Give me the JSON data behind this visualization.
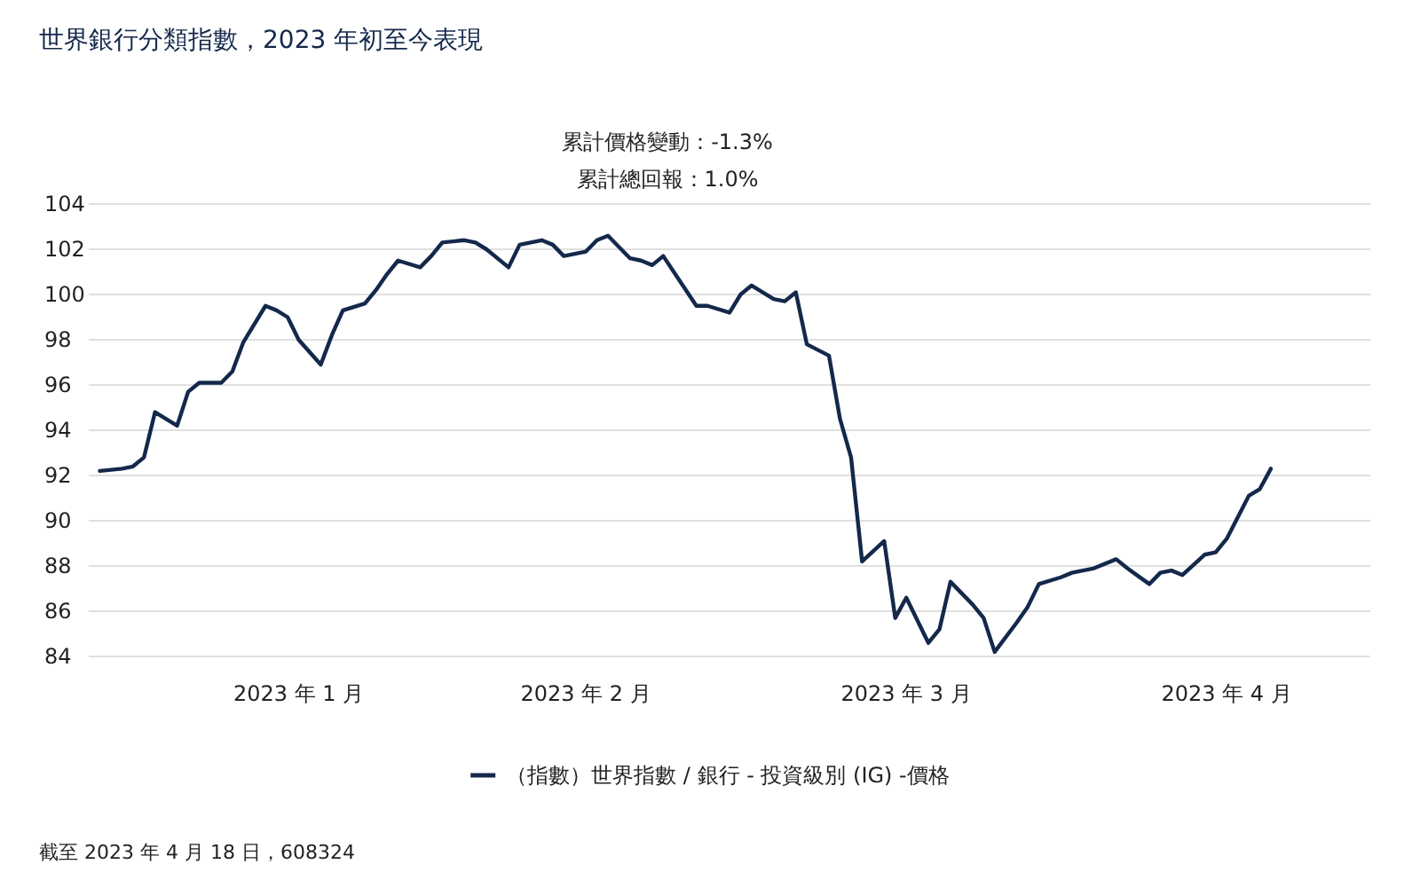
{
  "chart_data": {
    "type": "line",
    "title": "世界銀行分類指數，2023 年初至今表現",
    "annotations": [
      "累計價格變動：-1.3%",
      "累計總回報：1.0%",
      "截至 2023 年 4 月 18 日，608324"
    ],
    "x": [
      "2023-01-02",
      "2023-01-04",
      "2023-01-05",
      "2023-01-06",
      "2023-01-07",
      "2023-01-09",
      "2023-01-10",
      "2023-01-11",
      "2023-01-13",
      "2023-01-14",
      "2023-01-15",
      "2023-01-17",
      "2023-01-18",
      "2023-01-19",
      "2023-01-20",
      "2023-01-22",
      "2023-01-23",
      "2023-01-24",
      "2023-01-26",
      "2023-01-27",
      "2023-01-28",
      "2023-01-29",
      "2023-01-31",
      "2023-02-01",
      "2023-02-02",
      "2023-02-04",
      "2023-02-05",
      "2023-02-06",
      "2023-02-08",
      "2023-02-09",
      "2023-02-11",
      "2023-02-12",
      "2023-02-13",
      "2023-02-15",
      "2023-02-16",
      "2023-02-17",
      "2023-02-19",
      "2023-02-20",
      "2023-02-21",
      "2023-02-22",
      "2023-02-25",
      "2023-02-26",
      "2023-02-28",
      "2023-03-01",
      "2023-03-02",
      "2023-03-04",
      "2023-03-05",
      "2023-03-06",
      "2023-03-07",
      "2023-03-09",
      "2023-03-10",
      "2023-03-11",
      "2023-03-12",
      "2023-03-14",
      "2023-03-15",
      "2023-03-16",
      "2023-03-18",
      "2023-03-19",
      "2023-03-20",
      "2023-03-22",
      "2023-03-23",
      "2023-03-24",
      "2023-03-26",
      "2023-03-27",
      "2023-03-28",
      "2023-03-30",
      "2023-03-31",
      "2023-04-02",
      "2023-04-04",
      "2023-04-05",
      "2023-04-07",
      "2023-04-08",
      "2023-04-09",
      "2023-04-10",
      "2023-04-12",
      "2023-04-13",
      "2023-04-14",
      "2023-04-16",
      "2023-04-17",
      "2023-04-18"
    ],
    "series": [
      {
        "name": "（指數）世界指數 / 銀行 - 投資級別 (IG) -價格",
        "color": "#14284b",
        "values": [
          92.2,
          92.3,
          92.4,
          92.8,
          94.8,
          94.2,
          95.7,
          96.1,
          96.1,
          96.6,
          97.9,
          99.5,
          99.3,
          99.0,
          98.0,
          96.9,
          98.2,
          99.3,
          99.6,
          100.2,
          100.9,
          101.5,
          101.2,
          101.7,
          102.3,
          102.4,
          102.3,
          102.0,
          101.2,
          102.2,
          102.4,
          102.2,
          101.7,
          101.9,
          102.4,
          102.6,
          101.6,
          101.5,
          101.3,
          101.7,
          99.5,
          99.5,
          99.2,
          100.0,
          100.4,
          99.8,
          99.7,
          100.1,
          97.8,
          97.3,
          94.5,
          92.8,
          88.2,
          89.1,
          85.7,
          86.6,
          84.6,
          85.2,
          87.3,
          86.3,
          85.7,
          84.2,
          85.5,
          86.2,
          87.2,
          87.5,
          87.7,
          87.9,
          88.3,
          87.9,
          87.2,
          87.7,
          87.8,
          87.6,
          88.5,
          88.6,
          89.2,
          91.1,
          91.4,
          92.3
        ]
      }
    ],
    "xlim": [
      "2023-01-01",
      "2023-04-27"
    ],
    "xticks": [
      {
        "value": "2023-01-20",
        "label": "2023 年 1 月"
      },
      {
        "value": "2023-02-15",
        "label": "2023 年 2 月"
      },
      {
        "value": "2023-03-16",
        "label": "2023 年 3 月"
      },
      {
        "value": "2023-04-14",
        "label": "2023 年 4 月"
      }
    ],
    "ylim": [
      84,
      104
    ],
    "yticks": [
      84,
      86,
      88,
      90,
      92,
      94,
      96,
      98,
      100,
      102,
      104
    ],
    "grid": "y",
    "legend": "bottom",
    "marker": "none",
    "line_style": "solid"
  }
}
